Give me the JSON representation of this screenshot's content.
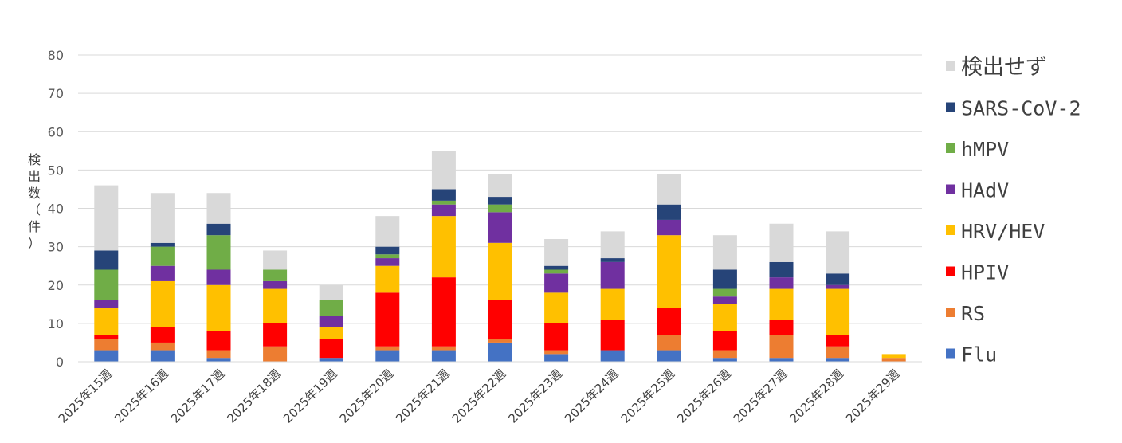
{
  "chart_data": {
    "type": "bar",
    "stacked": true,
    "ylabel": "検出数（件）",
    "ylim": [
      0,
      80
    ],
    "yticks": [
      0,
      10,
      20,
      30,
      40,
      50,
      60,
      70,
      80
    ],
    "grid": true,
    "legend_position": "right",
    "categories": [
      "2025年15週",
      "2025年16週",
      "2025年17週",
      "2025年18週",
      "2025年19週",
      "2025年20週",
      "2025年21週",
      "2025年22週",
      "2025年23週",
      "2025年24週",
      "2025年25週",
      "2025年26週",
      "2025年27週",
      "2025年28週",
      "2025年29週"
    ],
    "series": [
      {
        "name": "Flu",
        "color": "#4472C4",
        "values": [
          3,
          3,
          1,
          0,
          1,
          3,
          3,
          5,
          2,
          3,
          3,
          1,
          1,
          1,
          0
        ]
      },
      {
        "name": "RS",
        "color": "#ED7D31",
        "values": [
          3,
          2,
          2,
          4,
          0,
          1,
          1,
          1,
          1,
          0,
          4,
          2,
          6,
          3,
          1
        ]
      },
      {
        "name": "HPIV",
        "color": "#FF0000",
        "values": [
          1,
          4,
          5,
          6,
          5,
          14,
          18,
          10,
          7,
          8,
          7,
          5,
          4,
          3,
          0
        ]
      },
      {
        "name": "HRV/HEV",
        "color": "#FFC000",
        "values": [
          7,
          12,
          12,
          9,
          3,
          7,
          16,
          15,
          8,
          8,
          19,
          7,
          8,
          12,
          1
        ]
      },
      {
        "name": "HAdV",
        "color": "#7030A0",
        "values": [
          2,
          4,
          4,
          2,
          3,
          2,
          3,
          8,
          5,
          7,
          4,
          2,
          3,
          1,
          0
        ]
      },
      {
        "name": "hMPV",
        "color": "#70AD47",
        "values": [
          8,
          5,
          9,
          3,
          4,
          1,
          1,
          2,
          1,
          0,
          0,
          2,
          0,
          0,
          0
        ]
      },
      {
        "name": "SARS-CoV-2",
        "color": "#264478",
        "values": [
          5,
          1,
          3,
          0,
          0,
          2,
          3,
          2,
          1,
          1,
          4,
          5,
          4,
          3,
          0
        ]
      },
      {
        "name": "検出せず",
        "color": "#D9D9D9",
        "values": [
          17,
          13,
          8,
          5,
          4,
          8,
          10,
          6,
          7,
          7,
          8,
          9,
          10,
          11,
          0
        ]
      }
    ]
  }
}
